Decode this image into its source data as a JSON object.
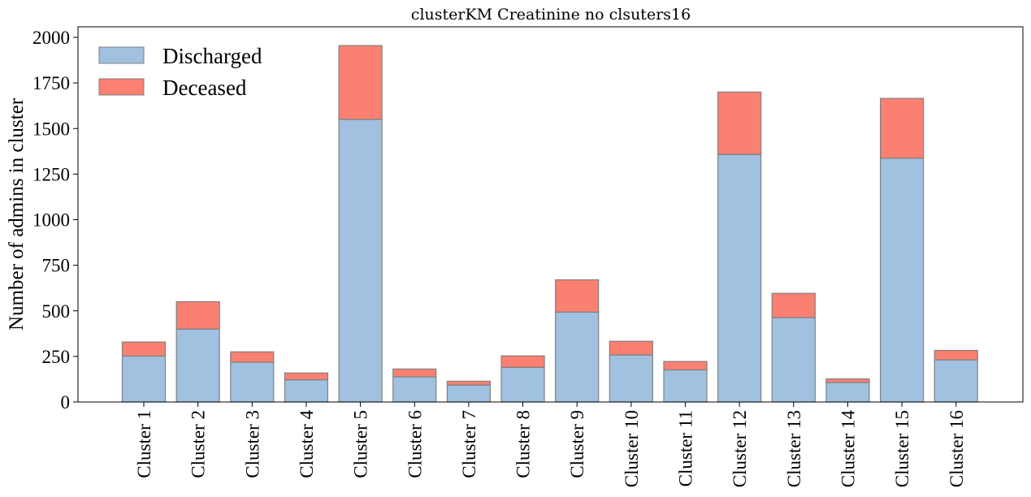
{
  "chart_data": {
    "type": "bar",
    "stacked": true,
    "title": "clusterKM Creatinine no clsuters16",
    "xlabel": "",
    "ylabel": "Number of admins in cluster",
    "ylim": [
      0,
      2050
    ],
    "yticks": [
      0,
      250,
      500,
      750,
      1000,
      1250,
      1500,
      1750,
      2000
    ],
    "categories": [
      "Cluster 1",
      "Cluster 2",
      "Cluster 3",
      "Cluster 4",
      "Cluster 5",
      "Cluster 6",
      "Cluster 7",
      "Cluster 8",
      "Cluster 9",
      "Cluster 10",
      "Cluster 11",
      "Cluster 12",
      "Cluster 13",
      "Cluster 14",
      "Cluster 15",
      "Cluster 16"
    ],
    "series": [
      {
        "name": "Discharged",
        "color": "#a0c1e0",
        "values": [
          252,
          400,
          218,
          122,
          1550,
          138,
          93,
          190,
          493,
          258,
          176,
          1358,
          463,
          107,
          1337,
          231
        ]
      },
      {
        "name": "Deceased",
        "color": "#fa8072",
        "values": [
          77,
          150,
          57,
          37,
          405,
          43,
          21,
          63,
          177,
          75,
          46,
          342,
          133,
          20,
          328,
          52
        ]
      }
    ],
    "grid": false,
    "legend_position": "top-left",
    "edge_color": "#808080"
  }
}
